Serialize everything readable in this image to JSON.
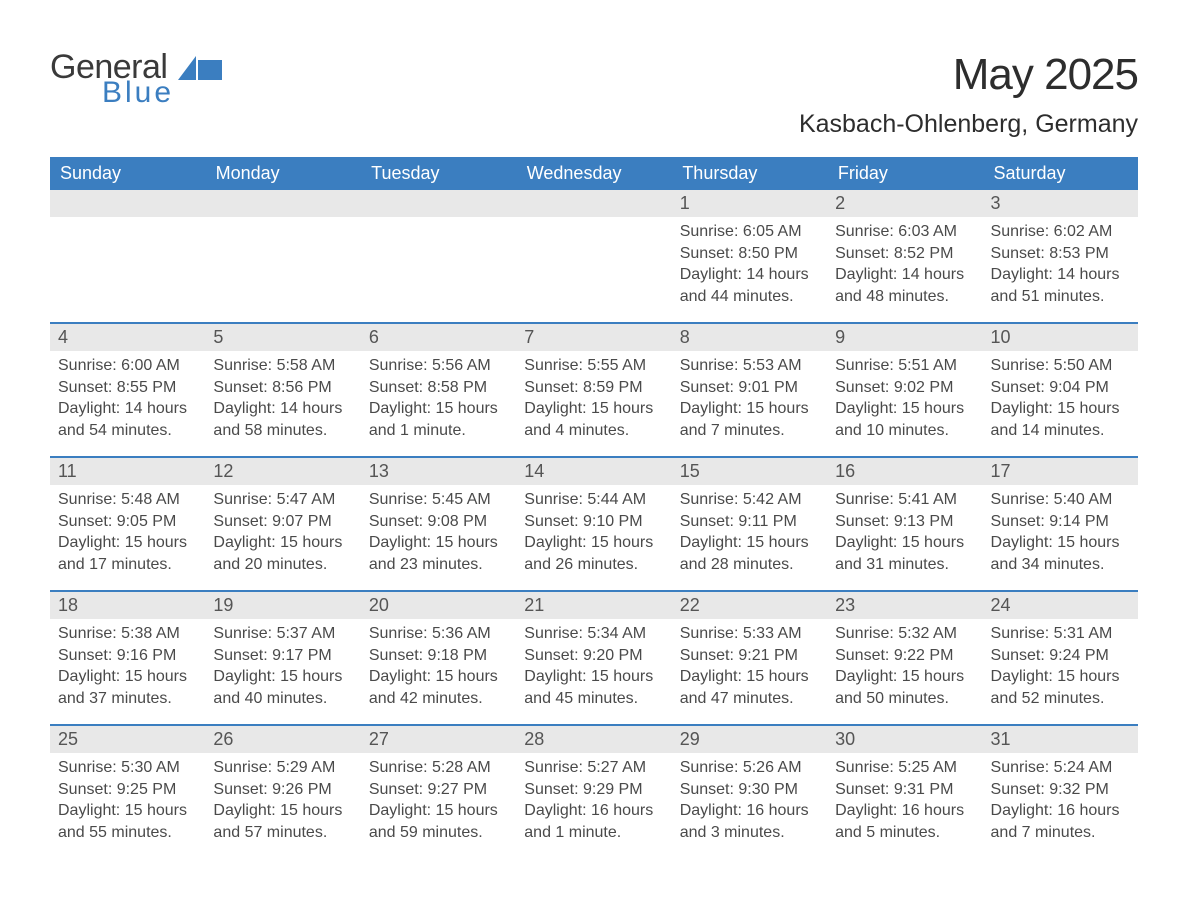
{
  "brand": {
    "general": "General",
    "blue": "Blue"
  },
  "title": "May 2025",
  "location": "Kasbach-Ohlenberg, Germany",
  "colors": {
    "header_bg": "#3b7ec0",
    "header_text": "#ffffff",
    "daynum_bg": "#e8e8e8",
    "row_border": "#3b7ec0",
    "body_text": "#4a4a4a",
    "title_text": "#2d2d2d",
    "brand_blue": "#3b7ec0",
    "brand_dark": "#3a3a3a",
    "page_bg": "#ffffff"
  },
  "typography": {
    "month_title_size": 44,
    "location_size": 25,
    "weekday_size": 18,
    "daynum_size": 18,
    "detail_size": 16,
    "font_family": "Arial"
  },
  "weekdays": [
    "Sunday",
    "Monday",
    "Tuesday",
    "Wednesday",
    "Thursday",
    "Friday",
    "Saturday"
  ],
  "weeks": [
    [
      {
        "empty": true
      },
      {
        "empty": true
      },
      {
        "empty": true
      },
      {
        "empty": true
      },
      {
        "n": "1",
        "sunrise": "Sunrise: 6:05 AM",
        "sunset": "Sunset: 8:50 PM",
        "day1": "Daylight: 14 hours",
        "day2": "and 44 minutes."
      },
      {
        "n": "2",
        "sunrise": "Sunrise: 6:03 AM",
        "sunset": "Sunset: 8:52 PM",
        "day1": "Daylight: 14 hours",
        "day2": "and 48 minutes."
      },
      {
        "n": "3",
        "sunrise": "Sunrise: 6:02 AM",
        "sunset": "Sunset: 8:53 PM",
        "day1": "Daylight: 14 hours",
        "day2": "and 51 minutes."
      }
    ],
    [
      {
        "n": "4",
        "sunrise": "Sunrise: 6:00 AM",
        "sunset": "Sunset: 8:55 PM",
        "day1": "Daylight: 14 hours",
        "day2": "and 54 minutes."
      },
      {
        "n": "5",
        "sunrise": "Sunrise: 5:58 AM",
        "sunset": "Sunset: 8:56 PM",
        "day1": "Daylight: 14 hours",
        "day2": "and 58 minutes."
      },
      {
        "n": "6",
        "sunrise": "Sunrise: 5:56 AM",
        "sunset": "Sunset: 8:58 PM",
        "day1": "Daylight: 15 hours",
        "day2": "and 1 minute."
      },
      {
        "n": "7",
        "sunrise": "Sunrise: 5:55 AM",
        "sunset": "Sunset: 8:59 PM",
        "day1": "Daylight: 15 hours",
        "day2": "and 4 minutes."
      },
      {
        "n": "8",
        "sunrise": "Sunrise: 5:53 AM",
        "sunset": "Sunset: 9:01 PM",
        "day1": "Daylight: 15 hours",
        "day2": "and 7 minutes."
      },
      {
        "n": "9",
        "sunrise": "Sunrise: 5:51 AM",
        "sunset": "Sunset: 9:02 PM",
        "day1": "Daylight: 15 hours",
        "day2": "and 10 minutes."
      },
      {
        "n": "10",
        "sunrise": "Sunrise: 5:50 AM",
        "sunset": "Sunset: 9:04 PM",
        "day1": "Daylight: 15 hours",
        "day2": "and 14 minutes."
      }
    ],
    [
      {
        "n": "11",
        "sunrise": "Sunrise: 5:48 AM",
        "sunset": "Sunset: 9:05 PM",
        "day1": "Daylight: 15 hours",
        "day2": "and 17 minutes."
      },
      {
        "n": "12",
        "sunrise": "Sunrise: 5:47 AM",
        "sunset": "Sunset: 9:07 PM",
        "day1": "Daylight: 15 hours",
        "day2": "and 20 minutes."
      },
      {
        "n": "13",
        "sunrise": "Sunrise: 5:45 AM",
        "sunset": "Sunset: 9:08 PM",
        "day1": "Daylight: 15 hours",
        "day2": "and 23 minutes."
      },
      {
        "n": "14",
        "sunrise": "Sunrise: 5:44 AM",
        "sunset": "Sunset: 9:10 PM",
        "day1": "Daylight: 15 hours",
        "day2": "and 26 minutes."
      },
      {
        "n": "15",
        "sunrise": "Sunrise: 5:42 AM",
        "sunset": "Sunset: 9:11 PM",
        "day1": "Daylight: 15 hours",
        "day2": "and 28 minutes."
      },
      {
        "n": "16",
        "sunrise": "Sunrise: 5:41 AM",
        "sunset": "Sunset: 9:13 PM",
        "day1": "Daylight: 15 hours",
        "day2": "and 31 minutes."
      },
      {
        "n": "17",
        "sunrise": "Sunrise: 5:40 AM",
        "sunset": "Sunset: 9:14 PM",
        "day1": "Daylight: 15 hours",
        "day2": "and 34 minutes."
      }
    ],
    [
      {
        "n": "18",
        "sunrise": "Sunrise: 5:38 AM",
        "sunset": "Sunset: 9:16 PM",
        "day1": "Daylight: 15 hours",
        "day2": "and 37 minutes."
      },
      {
        "n": "19",
        "sunrise": "Sunrise: 5:37 AM",
        "sunset": "Sunset: 9:17 PM",
        "day1": "Daylight: 15 hours",
        "day2": "and 40 minutes."
      },
      {
        "n": "20",
        "sunrise": "Sunrise: 5:36 AM",
        "sunset": "Sunset: 9:18 PM",
        "day1": "Daylight: 15 hours",
        "day2": "and 42 minutes."
      },
      {
        "n": "21",
        "sunrise": "Sunrise: 5:34 AM",
        "sunset": "Sunset: 9:20 PM",
        "day1": "Daylight: 15 hours",
        "day2": "and 45 minutes."
      },
      {
        "n": "22",
        "sunrise": "Sunrise: 5:33 AM",
        "sunset": "Sunset: 9:21 PM",
        "day1": "Daylight: 15 hours",
        "day2": "and 47 minutes."
      },
      {
        "n": "23",
        "sunrise": "Sunrise: 5:32 AM",
        "sunset": "Sunset: 9:22 PM",
        "day1": "Daylight: 15 hours",
        "day2": "and 50 minutes."
      },
      {
        "n": "24",
        "sunrise": "Sunrise: 5:31 AM",
        "sunset": "Sunset: 9:24 PM",
        "day1": "Daylight: 15 hours",
        "day2": "and 52 minutes."
      }
    ],
    [
      {
        "n": "25",
        "sunrise": "Sunrise: 5:30 AM",
        "sunset": "Sunset: 9:25 PM",
        "day1": "Daylight: 15 hours",
        "day2": "and 55 minutes."
      },
      {
        "n": "26",
        "sunrise": "Sunrise: 5:29 AM",
        "sunset": "Sunset: 9:26 PM",
        "day1": "Daylight: 15 hours",
        "day2": "and 57 minutes."
      },
      {
        "n": "27",
        "sunrise": "Sunrise: 5:28 AM",
        "sunset": "Sunset: 9:27 PM",
        "day1": "Daylight: 15 hours",
        "day2": "and 59 minutes."
      },
      {
        "n": "28",
        "sunrise": "Sunrise: 5:27 AM",
        "sunset": "Sunset: 9:29 PM",
        "day1": "Daylight: 16 hours",
        "day2": "and 1 minute."
      },
      {
        "n": "29",
        "sunrise": "Sunrise: 5:26 AM",
        "sunset": "Sunset: 9:30 PM",
        "day1": "Daylight: 16 hours",
        "day2": "and 3 minutes."
      },
      {
        "n": "30",
        "sunrise": "Sunrise: 5:25 AM",
        "sunset": "Sunset: 9:31 PM",
        "day1": "Daylight: 16 hours",
        "day2": "and 5 minutes."
      },
      {
        "n": "31",
        "sunrise": "Sunrise: 5:24 AM",
        "sunset": "Sunset: 9:32 PM",
        "day1": "Daylight: 16 hours",
        "day2": "and 7 minutes."
      }
    ]
  ]
}
